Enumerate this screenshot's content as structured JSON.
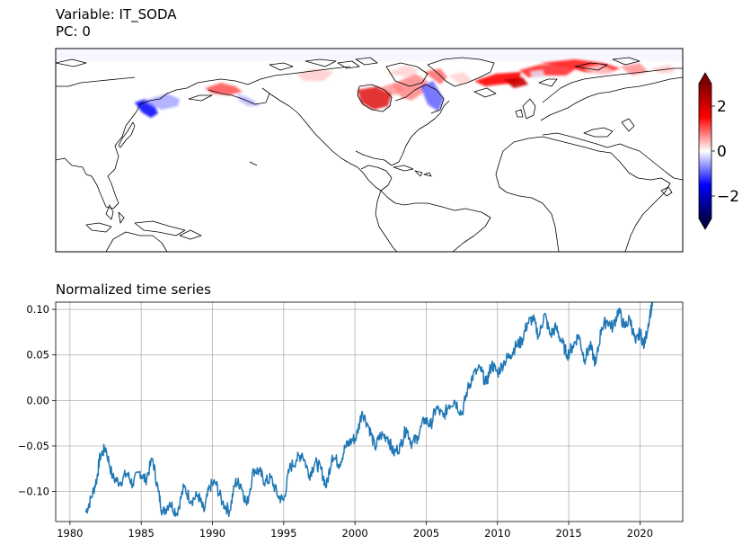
{
  "map_panel": {
    "title_variable": "Variable: IT_SODA",
    "title_pc": "PC: 0",
    "colorbar": {
      "ticks": [
        2,
        0,
        -2
      ],
      "tick_labels": [
        "2",
        "0",
        "−2"
      ],
      "range": [
        -3,
        3
      ],
      "colormap": "seismic",
      "colors": [
        "#00004c",
        "#0000ff",
        "#ffffff",
        "#ff0000",
        "#7f0000"
      ],
      "extend": "both"
    }
  },
  "chart_data": {
    "type": "line",
    "title": "Normalized time series",
    "xlabel": "",
    "ylabel": "",
    "xlim": [
      1979,
      2023
    ],
    "ylim": [
      -0.133,
      0.108
    ],
    "x_ticks": [
      1980,
      1985,
      1990,
      1995,
      2000,
      2005,
      2010,
      2015,
      2020
    ],
    "y_ticks": [
      -0.1,
      -0.05,
      0.0,
      0.05,
      0.1
    ],
    "y_tick_labels": [
      "−0.10",
      "−0.05",
      "0.00",
      "0.05",
      "0.10"
    ],
    "grid": true,
    "line_color": "#1f77b4",
    "series": [
      {
        "x": [
          1981.1,
          1981.5,
          1981.9,
          1982.1,
          1982.5,
          1983.0,
          1983.5,
          1984.0,
          1984.4,
          1984.9,
          1985.3,
          1985.8,
          1986.2,
          1986.5,
          1987.0,
          1987.5,
          1988.0,
          1988.5,
          1989.0,
          1989.4,
          1989.8,
          1990.2,
          1990.7,
          1991.2,
          1991.6,
          1992.0,
          1992.4,
          1992.9,
          1993.3,
          1993.7,
          1994.1,
          1994.6,
          1995.0,
          1995.4,
          1995.9,
          1996.3,
          1996.8,
          1997.2,
          1997.6,
          1998.0,
          1998.4,
          1998.9,
          1999.3,
          1999.7,
          2000.1,
          2000.5,
          2001.0,
          2001.4,
          2001.8,
          2002.3,
          2002.7,
          2003.2,
          2003.6,
          2004.0,
          2004.4,
          2004.9,
          2005.3,
          2005.7,
          2006.2,
          2006.6,
          2007.0,
          2007.5,
          2007.9,
          2008.3,
          2008.8,
          2009.2,
          2009.6,
          2010.0,
          2010.5,
          2010.9,
          2011.3,
          2011.7,
          2012.1,
          2012.5,
          2012.9,
          2013.3,
          2013.7,
          2014.1,
          2014.5,
          2014.9,
          2015.3,
          2015.7,
          2016.1,
          2016.5,
          2016.9,
          2017.3,
          2017.7,
          2018.1,
          2018.5,
          2018.9,
          2019.3,
          2019.7,
          2020.0,
          2020.3,
          2020.7,
          2020.9
        ],
        "y": [
          -0.123,
          -0.107,
          -0.085,
          -0.062,
          -0.052,
          -0.085,
          -0.09,
          -0.08,
          -0.092,
          -0.078,
          -0.088,
          -0.064,
          -0.1,
          -0.124,
          -0.112,
          -0.124,
          -0.095,
          -0.11,
          -0.104,
          -0.122,
          -0.095,
          -0.09,
          -0.112,
          -0.122,
          -0.09,
          -0.092,
          -0.115,
          -0.076,
          -0.078,
          -0.09,
          -0.085,
          -0.105,
          -0.11,
          -0.075,
          -0.065,
          -0.058,
          -0.082,
          -0.068,
          -0.075,
          -0.095,
          -0.06,
          -0.07,
          -0.052,
          -0.045,
          -0.04,
          -0.012,
          -0.03,
          -0.052,
          -0.038,
          -0.04,
          -0.058,
          -0.05,
          -0.03,
          -0.048,
          -0.04,
          -0.02,
          -0.028,
          -0.008,
          -0.018,
          -0.005,
          0.0,
          -0.015,
          0.012,
          0.028,
          0.035,
          0.018,
          0.04,
          0.03,
          0.043,
          0.05,
          0.06,
          0.065,
          0.085,
          0.09,
          0.07,
          0.095,
          0.072,
          0.08,
          0.065,
          0.05,
          0.06,
          0.072,
          0.045,
          0.06,
          0.04,
          0.08,
          0.088,
          0.08,
          0.1,
          0.08,
          0.09,
          0.063,
          0.075,
          0.06,
          0.095,
          0.108
        ]
      }
    ]
  }
}
